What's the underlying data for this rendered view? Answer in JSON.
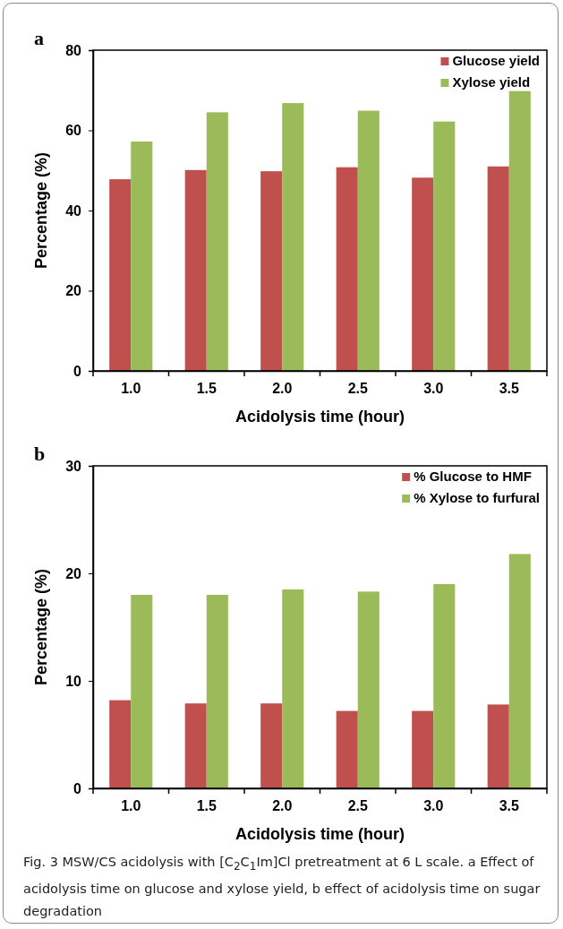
{
  "chart_data": [
    {
      "type": "bar",
      "title": "a",
      "categories": [
        "1.0",
        "1.5",
        "2.0",
        "2.5",
        "3.0",
        "3.5"
      ],
      "xlabel": "Acidolysis time (hour)",
      "ylabel": "Percentage (%)",
      "ylim": [
        0,
        80
      ],
      "yticks": [
        0,
        20,
        40,
        60,
        80
      ],
      "legend": "top right",
      "grid": false,
      "series": [
        {
          "name": "Glucose yield",
          "color": "#c0504d",
          "values": [
            47.8,
            50.1,
            49.8,
            50.8,
            48.2,
            51.0
          ]
        },
        {
          "name": "Xylose yield",
          "color": "#9bbb59",
          "values": [
            57.2,
            64.5,
            66.8,
            64.9,
            62.2,
            69.8
          ]
        }
      ]
    },
    {
      "type": "bar",
      "title": "b",
      "categories": [
        "1.0",
        "1.5",
        "2.0",
        "2.5",
        "3.0",
        "3.5"
      ],
      "xlabel": "Acidolysis time (hour)",
      "ylabel": "Percentage (%)",
      "ylim": [
        0,
        30
      ],
      "yticks": [
        0,
        10,
        20,
        30
      ],
      "legend": "top right",
      "grid": false,
      "series": [
        {
          "name": "% Glucose to HMF",
          "color": "#c0504d",
          "values": [
            8.2,
            7.9,
            7.9,
            7.2,
            7.2,
            7.8
          ]
        },
        {
          "name": "% Xylose to furfural",
          "color": "#9bbb59",
          "values": [
            18.0,
            18.0,
            18.5,
            18.3,
            19.0,
            21.8
          ]
        }
      ],
      "annotations": [
        "Fig. 3  MSW/CS acidolysis with [C$_{2}$C$_{1}$Im]Cl pretreatment at 6 L scale. a Effect of acidolysis time on glucose and xylose yield, b effect of acidolysis time on sugar degradation"
      ]
    }
  ]
}
